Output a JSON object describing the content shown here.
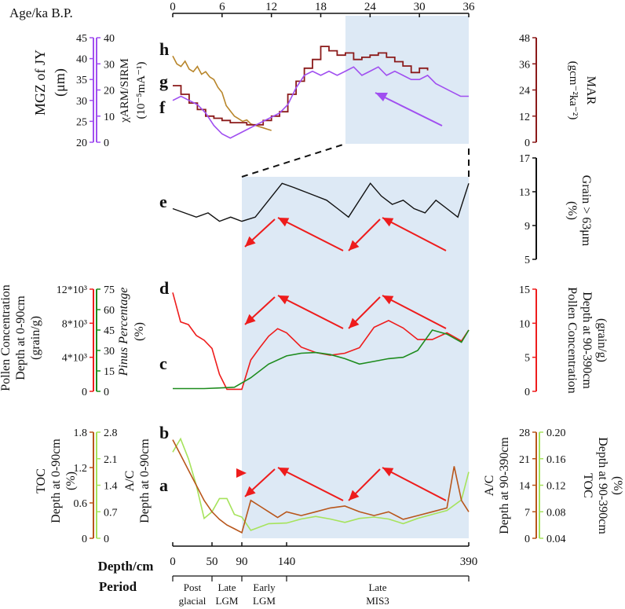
{
  "top_axis": {
    "label": "Age/ka B.P.",
    "ticks": [
      "0",
      "6",
      "12",
      "18",
      "24",
      "30",
      "36"
    ]
  },
  "bottom_axis": {
    "depth_label": "Depth/cm",
    "period_label": "Period",
    "depth_ticks": [
      "0",
      "50",
      "90",
      "140",
      "390"
    ],
    "periods": [
      {
        "line1": "Post",
        "line2": "glacial"
      },
      {
        "line1": "Late",
        "line2": "LGM"
      },
      {
        "line1": "Early",
        "line2": "LGM"
      },
      {
        "line1": "Late",
        "line2": "MIS3"
      }
    ]
  },
  "panel_top": {
    "left_title_1": "MGZ of  JY",
    "left_title_2": "(μm)",
    "left_title_3": "χARM/SIRM",
    "left_title_4": "(10⁻⁵mA⁻¹)",
    "mgz_ticks": [
      "45",
      "40",
      "35",
      "30",
      "25",
      "20"
    ],
    "chi_ticks": [
      "40",
      "30",
      "20",
      "10",
      "0"
    ],
    "right_title_1": "MAR",
    "right_title_2": "(gcm⁻²ka⁻²)",
    "mar_ticks": [
      "48",
      "36",
      "24",
      "12",
      "0"
    ],
    "letters": [
      "h",
      "g",
      "f"
    ]
  },
  "panel_e": {
    "letter": "e",
    "right_title_1": "Grain > 63μm",
    "right_title_2": "(%)",
    "ticks": [
      "17",
      "13",
      "9",
      "5"
    ]
  },
  "panel_pollen": {
    "left_title_1": "Pollen Concentration",
    "left_title_2": "Depth at 0-90cm",
    "left_title_3": "(grain/g)",
    "left_title_4": "Pinus Percentage",
    "left_title_5": "(%)",
    "conc_ticks": [
      "12*10³",
      "8*10³",
      "4*10³",
      "0"
    ],
    "pinus_ticks": [
      "75",
      "60",
      "45",
      "30",
      "15",
      "0"
    ],
    "right_title_1": "Pollen Concentration",
    "right_title_2": "Depth at 90-390cm",
    "right_title_3": "(grain/g)",
    "right_ticks": [
      "15",
      "10",
      "5",
      "0"
    ],
    "letters": [
      "d",
      "c"
    ]
  },
  "panel_toc": {
    "left_title_1": "TOC",
    "left_title_2": "Depth at 0-90cm",
    "left_title_3": "(%)",
    "left_title_4": "A/C",
    "left_title_5": "Depth at 0-90cm",
    "toc_ticks": [
      "1.8",
      "1.2",
      "0.6",
      "0"
    ],
    "ac_ticks": [
      "2.8",
      "2.1",
      "1.4",
      "0.7",
      "0"
    ],
    "right_title_1": "A/C",
    "right_title_2": "Depth at 90-390cm",
    "right_title_3": "TOC",
    "right_title_4": "Depth at 90-390cm",
    "right_title_5": "(%)",
    "ac_right_ticks": [
      "28",
      "21",
      "14",
      "7",
      "0"
    ],
    "toc_right_ticks": [
      "0.20",
      "0.16",
      "0.12",
      "0.08",
      "0.04"
    ],
    "letters": [
      "b",
      "a"
    ]
  },
  "colors": {
    "h": "#b8862b",
    "g": "#8b1a1a",
    "f": "#a04ff0",
    "e": "#111111",
    "d": "#ee1c1c",
    "c": "#1e8c1e",
    "b": "#b8561b",
    "a": "#a6e35c",
    "arrow_red": "#ee1c1c",
    "arrow_purple": "#a04ff0",
    "shade": "#dde9f5"
  },
  "chart_data": [
    {
      "type": "line",
      "title": "h",
      "xlabel": "Age/ka B.P.",
      "ylabel": "χARM/SIRM (10⁻⁵mA⁻¹)",
      "ylim": [
        0,
        40
      ],
      "x": [
        0,
        0.5,
        1,
        1.5,
        2,
        2.5,
        3,
        3.5,
        4,
        4.5,
        5,
        5.5,
        6,
        6.5,
        7,
        7.5,
        8,
        8.5,
        9,
        9.5,
        10,
        10.5,
        11,
        11.5,
        12
      ],
      "values": [
        33,
        30,
        29,
        31,
        28,
        27,
        29,
        26,
        27,
        25,
        24,
        21,
        19,
        14,
        12,
        10,
        9,
        8,
        8.5,
        7,
        6.5,
        6,
        5.5,
        5,
        4.5
      ]
    },
    {
      "type": "line",
      "title": "g",
      "ylabel": "MAR (gcm⁻²ka⁻²)",
      "ylim": [
        0,
        48
      ],
      "x": [
        0,
        1,
        2,
        3,
        4,
        5,
        6,
        7,
        8,
        9,
        10,
        11,
        12,
        13,
        14,
        15,
        16,
        17,
        18,
        19,
        20,
        21,
        22,
        23,
        24,
        25,
        26,
        27,
        28,
        29,
        30,
        31
      ],
      "values": [
        26,
        22,
        18,
        15,
        12,
        11,
        10,
        9,
        9,
        8,
        8,
        10,
        12,
        14,
        22,
        28,
        34,
        38,
        44,
        42,
        40,
        41,
        38,
        39,
        40,
        41,
        39,
        37,
        35,
        32,
        34,
        33
      ]
    },
    {
      "type": "line",
      "title": "f",
      "ylabel": "MGZ of JY (μm)",
      "ylim": [
        20,
        45
      ],
      "x": [
        0,
        1,
        2,
        3,
        4,
        5,
        6,
        7,
        8,
        9,
        10,
        11,
        12,
        13,
        14,
        15,
        16,
        17,
        18,
        19,
        20,
        21,
        22,
        23,
        24,
        25,
        26,
        27,
        28,
        29,
        30,
        31,
        32,
        33,
        34,
        35,
        36
      ],
      "values": [
        30,
        31,
        30,
        29,
        27,
        24,
        22,
        21,
        22,
        23,
        24,
        25,
        26,
        27,
        29,
        33,
        36,
        37,
        36,
        37,
        36,
        37,
        38,
        36,
        37,
        38,
        36,
        37,
        36,
        35,
        35,
        36,
        34,
        33,
        32,
        31,
        31
      ]
    },
    {
      "type": "line",
      "title": "e",
      "xlabel": "Depth/cm",
      "ylabel": "Grain > 63μm (%)",
      "ylim": [
        5,
        17
      ],
      "x": [
        0,
        15,
        30,
        45,
        60,
        75,
        90,
        105,
        120,
        135,
        150,
        165,
        180,
        195,
        210,
        225,
        240,
        255,
        270,
        285,
        300,
        315,
        330,
        345,
        360,
        375,
        390
      ],
      "values": [
        11,
        10.5,
        10,
        10.5,
        9.5,
        10,
        9.5,
        10,
        12,
        14,
        13.5,
        13,
        12.5,
        12,
        11,
        10,
        12,
        14,
        12.5,
        11.5,
        12,
        11,
        10.5,
        12,
        11,
        10,
        14
      ]
    },
    {
      "type": "line",
      "title": "d",
      "xlabel": "Depth/cm",
      "ylabel": "Pollen Concentration (grain/g)",
      "ylim": [
        0,
        15
      ],
      "x": [
        0,
        10,
        20,
        30,
        40,
        50,
        60,
        70,
        80,
        90,
        100,
        110,
        120,
        130,
        140,
        160,
        180,
        200,
        220,
        240,
        260,
        280,
        300,
        320,
        340,
        360,
        380,
        390
      ],
      "values": [
        14.5,
        10.2,
        9.8,
        8.2,
        7.5,
        6.3,
        2.5,
        0.3,
        0.3,
        0.3,
        4.6,
        6.4,
        8.1,
        9.2,
        8.6,
        6.5,
        5.7,
        5.3,
        5.6,
        6.4,
        9.4,
        10.4,
        9.3,
        7.6,
        7.6,
        8.6,
        7.4,
        9.0
      ]
    },
    {
      "type": "line",
      "title": "c",
      "xlabel": "Depth/cm",
      "ylabel": "Pinus Percentage (%)",
      "ylim": [
        0,
        75
      ],
      "x": [
        0,
        20,
        40,
        60,
        80,
        100,
        120,
        140,
        160,
        180,
        200,
        220,
        240,
        260,
        280,
        300,
        320,
        340,
        360,
        380,
        390
      ],
      "values": [
        2,
        2,
        2,
        2.5,
        3,
        10,
        20,
        26,
        28,
        28.5,
        27,
        24,
        20,
        22,
        24,
        25,
        30,
        45,
        42,
        36,
        45
      ]
    },
    {
      "type": "line",
      "title": "b",
      "xlabel": "Depth/cm",
      "ylabel": "A/C",
      "ylim": [
        0,
        28
      ],
      "x": [
        0,
        10,
        20,
        30,
        40,
        50,
        60,
        70,
        80,
        90,
        100,
        110,
        120,
        130,
        140,
        160,
        180,
        200,
        220,
        240,
        260,
        280,
        300,
        320,
        340,
        360,
        370,
        380,
        390
      ],
      "values": [
        26,
        22,
        18,
        14,
        10,
        7,
        5,
        3.5,
        2.5,
        1.5,
        10,
        8.5,
        7,
        5.5,
        7,
        6,
        7,
        8,
        8.5,
        7,
        6,
        7,
        5,
        6,
        7,
        8,
        19,
        10,
        7
      ]
    },
    {
      "type": "line",
      "title": "a",
      "xlabel": "Depth/cm",
      "ylabel": "TOC (%)",
      "ylim": [
        0.04,
        0.2
      ],
      "x": [
        0,
        10,
        20,
        30,
        40,
        50,
        60,
        70,
        80,
        90,
        100,
        120,
        140,
        160,
        180,
        200,
        220,
        240,
        260,
        280,
        300,
        320,
        340,
        360,
        380,
        390
      ],
      "values": [
        0.17,
        0.19,
        0.16,
        0.12,
        0.07,
        0.08,
        0.1,
        0.1,
        0.076,
        0.072,
        0.052,
        0.062,
        0.063,
        0.069,
        0.073,
        0.069,
        0.064,
        0.07,
        0.072,
        0.069,
        0.062,
        0.07,
        0.076,
        0.082,
        0.098,
        0.14
      ]
    }
  ]
}
